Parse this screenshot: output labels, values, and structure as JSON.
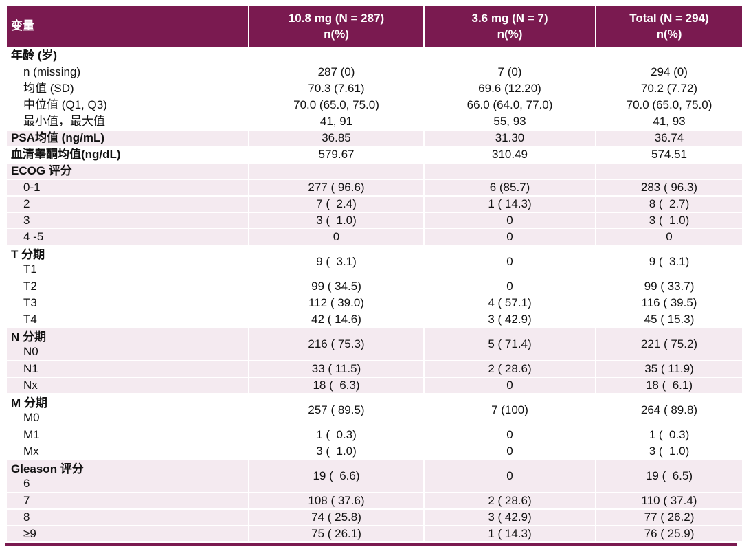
{
  "page": {
    "background": "#ffffff",
    "accent_color": "#7A1A50",
    "band_pink_color": "#F4EAF0",
    "header_text_color": "#ffffff"
  },
  "table": {
    "columns": [
      {
        "label": "变量",
        "sub": ""
      },
      {
        "label": "10.8 mg (N = 287)",
        "sub": "n(%)"
      },
      {
        "label": "3.6 mg (N = 7)",
        "sub": "n(%)"
      },
      {
        "label": "Total (N = 294)",
        "sub": "n(%)"
      }
    ],
    "rows": [
      {
        "kind": "section",
        "band": "white",
        "label": "年龄 (岁)",
        "values": [
          "",
          "",
          ""
        ]
      },
      {
        "kind": "item",
        "band": "white",
        "label": "n (missing)",
        "values": [
          "287 (0)",
          "7 (0)",
          "294 (0)"
        ]
      },
      {
        "kind": "item",
        "band": "white",
        "label": "均值 (SD)",
        "values": [
          "70.3 (7.61)",
          "69.6 (12.20)",
          "70.2 (7.72)"
        ]
      },
      {
        "kind": "item",
        "band": "white",
        "label": "中位值 (Q1, Q3)",
        "values": [
          "70.0 (65.0, 75.0)",
          "66.0 (64.0, 77.0)",
          "70.0 (65.0, 75.0)"
        ]
      },
      {
        "kind": "item",
        "band": "white",
        "label": "最小值，最大值",
        "values": [
          "41, 91",
          "55, 93",
          "41, 93"
        ]
      },
      {
        "kind": "section",
        "band": "pink",
        "label": "PSA均值 (ng/mL)",
        "values": [
          "36.85",
          "31.30",
          "36.74"
        ]
      },
      {
        "kind": "section",
        "band": "white",
        "label": "血清睾酮均值(ng/dL)",
        "values": [
          "579.67",
          "310.49",
          "574.51"
        ]
      },
      {
        "kind": "section",
        "band": "pink",
        "label": "ECOG 评分",
        "values": [
          "",
          "",
          ""
        ]
      },
      {
        "kind": "item",
        "band": "pink",
        "label": "0-1",
        "values": [
          "277 ( 96.6)",
          "6 (85.7)",
          "283 ( 96.3)"
        ]
      },
      {
        "kind": "item",
        "band": "pink",
        "label": "2",
        "values": [
          "7 (  2.4)",
          "1 ( 14.3)",
          "8 (  2.7)"
        ]
      },
      {
        "kind": "item",
        "band": "pink",
        "label": "3",
        "values": [
          "3 (  1.0)",
          "0",
          "3 (  1.0)"
        ]
      },
      {
        "kind": "item",
        "band": "pink",
        "label": "4 -5",
        "values": [
          "0",
          "0",
          "0"
        ]
      },
      {
        "kind": "merged",
        "band": "white",
        "label": "T 分期",
        "sublabel": "T1",
        "values": [
          "9 (  3.1)",
          "0",
          "9 (  3.1)"
        ]
      },
      {
        "kind": "item",
        "band": "white",
        "label": "T2",
        "values": [
          "99 ( 34.5)",
          "0",
          "99 ( 33.7)"
        ]
      },
      {
        "kind": "item",
        "band": "white",
        "label": "T3",
        "values": [
          "112 ( 39.0)",
          "4 ( 57.1)",
          "116 ( 39.5)"
        ]
      },
      {
        "kind": "item",
        "band": "white",
        "label": "T4",
        "values": [
          "42 ( 14.6)",
          "3 ( 42.9)",
          "45 ( 15.3)"
        ]
      },
      {
        "kind": "merged",
        "band": "pink",
        "label": "N 分期",
        "sublabel": "N0",
        "values": [
          "216 ( 75.3)",
          "5 ( 71.4)",
          "221 ( 75.2)"
        ]
      },
      {
        "kind": "item",
        "band": "pink",
        "label": "N1",
        "values": [
          "33 ( 11.5)",
          "2 ( 28.6)",
          "35 ( 11.9)"
        ]
      },
      {
        "kind": "item",
        "band": "pink",
        "label": "Nx",
        "values": [
          "18 (  6.3)",
          "0",
          "18 (  6.1)"
        ]
      },
      {
        "kind": "merged",
        "band": "white",
        "label": "M 分期",
        "sublabel": "M0",
        "values": [
          "257 ( 89.5)",
          "7 (100)",
          "264 ( 89.8)"
        ]
      },
      {
        "kind": "item",
        "band": "white",
        "label": "M1",
        "values": [
          "1 (  0.3)",
          "0",
          "1 (  0.3)"
        ]
      },
      {
        "kind": "item",
        "band": "white",
        "label": "Mx",
        "values": [
          "3 (  1.0)",
          "0",
          "3 (  1.0)"
        ]
      },
      {
        "kind": "merged",
        "band": "pink",
        "label": "Gleason 评分",
        "sublabel": "6",
        "values": [
          "19 (  6.6)",
          "0",
          "19 (  6.5)"
        ]
      },
      {
        "kind": "item",
        "band": "pink",
        "label": "7",
        "values": [
          "108 ( 37.6)",
          "2 ( 28.6)",
          "110 ( 37.4)"
        ]
      },
      {
        "kind": "item",
        "band": "pink",
        "label": "8",
        "values": [
          "74 ( 25.8)",
          "3 ( 42.9)",
          "77 ( 26.2)"
        ]
      },
      {
        "kind": "item",
        "band": "pink",
        "label": "≥9",
        "values": [
          "75 ( 26.1)",
          "1 ( 14.3)",
          "76 ( 25.9)"
        ]
      }
    ]
  }
}
